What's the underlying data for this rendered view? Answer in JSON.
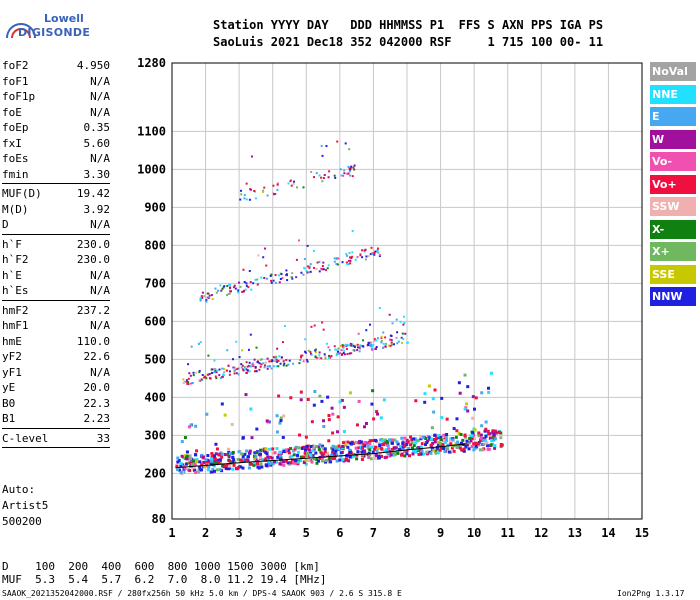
{
  "logo": {
    "line1": "Lowell",
    "line2": "DIGISONDE"
  },
  "header": {
    "line1": "Station YYYY DAY   DDD HHMMSS P1  FFS S AXN PPS IGA PS",
    "line2": "SaoLuis 2021 Dec18 352 042000 RSF     1 715 100 00- 11"
  },
  "params": [
    {
      "name": "foF2",
      "value": "4.950"
    },
    {
      "name": "foF1",
      "value": "N/A"
    },
    {
      "name": "foF1p",
      "value": "N/A"
    },
    {
      "name": "foE",
      "value": "N/A"
    },
    {
      "name": "foEp",
      "value": "0.35"
    },
    {
      "name": "fxI",
      "value": "5.60"
    },
    {
      "name": "foEs",
      "value": "N/A"
    },
    {
      "name": "fmin",
      "value": "3.30"
    },
    {
      "sep": true
    },
    {
      "name": "MUF(D)",
      "value": "19.42"
    },
    {
      "name": "M(D)",
      "value": "3.92"
    },
    {
      "name": "D",
      "value": "N/A"
    },
    {
      "sep": true
    },
    {
      "name": "h`F",
      "value": "230.0"
    },
    {
      "name": "h`F2",
      "value": "230.0"
    },
    {
      "name": "h`E",
      "value": "N/A"
    },
    {
      "name": "h`Es",
      "value": "N/A"
    },
    {
      "sep": true
    },
    {
      "name": "hmF2",
      "value": "237.2"
    },
    {
      "name": "hmF1",
      "value": "N/A"
    },
    {
      "name": "hmE",
      "value": "110.0"
    },
    {
      "name": "yF2",
      "value": "22.6"
    },
    {
      "name": "yF1",
      "value": "N/A"
    },
    {
      "name": "yE",
      "value": "20.0"
    },
    {
      "name": "B0",
      "value": "22.3"
    },
    {
      "name": "B1",
      "value": "2.23"
    },
    {
      "sep": true
    },
    {
      "name": "C-level",
      "value": "33"
    },
    {
      "sep": true
    }
  ],
  "auto": {
    "line1": "Auto:",
    "line2": "Artist5",
    "line3": "500200"
  },
  "legend": [
    {
      "label": "NoVal",
      "color": "#a3a3a3"
    },
    {
      "label": "NNE",
      "color": "#22e0ff"
    },
    {
      "label": "E",
      "color": "#45a8f0"
    },
    {
      "label": "W",
      "color": "#a0109c"
    },
    {
      "label": "Vo-",
      "color": "#f050b0"
    },
    {
      "label": "Vo+",
      "color": "#f01040"
    },
    {
      "label": "SSW",
      "color": "#f0b0b0"
    },
    {
      "label": "X-",
      "color": "#108010"
    },
    {
      "label": "X+",
      "color": "#70b860"
    },
    {
      "label": "SSE",
      "color": "#c8c800"
    },
    {
      "label": "NNW",
      "color": "#2020e0"
    }
  ],
  "footer": {
    "dline": "D    100  200  400  600  800 1000 1500 3000 [km]",
    "mufline": "MUF  5.3  5.4  5.7  6.2  7.0  8.0 11.2 19.4 [MHz]",
    "source": "SAAOK_2021352042000.RSF / 280fx256h 50 kHz 5.0 km / DPS-4 SAAOK 903 / 2.6 S 315.8 E",
    "version": "Ion2Png 1.3.17"
  },
  "chart_data": {
    "type": "scatter",
    "title": "",
    "xlabel": "",
    "ylabel": "",
    "xlim": [
      1,
      15
    ],
    "ylim": [
      80,
      1280
    ],
    "xticks": [
      1,
      2,
      3,
      4,
      5,
      6,
      7,
      8,
      9,
      10,
      11,
      12,
      13,
      14,
      15
    ],
    "yticks": [
      80,
      200,
      300,
      400,
      500,
      600,
      700,
      800,
      900,
      1000,
      1100,
      1280
    ],
    "grid": true,
    "traces": [
      {
        "name": "F-trace",
        "x_range": [
          1.1,
          10.8
        ],
        "h_start": 225,
        "h_end": 295
      },
      {
        "name": "2F echo",
        "x_range": [
          1.3,
          8.0
        ],
        "h_start": 450,
        "h_end": 560
      },
      {
        "name": "3F echo",
        "x_range": [
          1.8,
          7.2
        ],
        "h_start": 665,
        "h_end": 790
      },
      {
        "name": "4F echo",
        "x_range": [
          2.9,
          6.5
        ],
        "h_start": 930,
        "h_end": 1000
      }
    ],
    "profile_curve": [
      [
        1.1,
        215
      ],
      [
        3,
        228
      ],
      [
        5,
        240
      ],
      [
        7,
        252
      ],
      [
        8,
        262
      ],
      [
        9,
        270
      ],
      [
        9.8,
        278
      ]
    ]
  }
}
